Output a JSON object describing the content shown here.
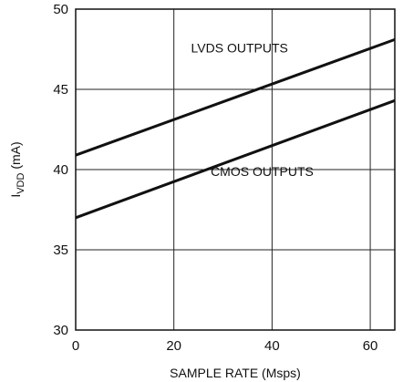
{
  "chart_data": {
    "type": "line",
    "title": "",
    "xlabel": "SAMPLE RATE (Msps)",
    "ylabel": {
      "base": "I",
      "subscript": "VDD",
      "unit": " (mA)"
    },
    "xlim": [
      0,
      65
    ],
    "ylim": [
      30,
      50
    ],
    "xticks": [
      0,
      20,
      40,
      60
    ],
    "yticks": [
      30,
      35,
      40,
      45,
      50
    ],
    "grid": true,
    "series": [
      {
        "name": "LVDS OUTPUTS",
        "x": [
          0,
          65
        ],
        "y": [
          40.9,
          48.1
        ]
      },
      {
        "name": "CMOS OUTPUTS",
        "x": [
          0,
          65
        ],
        "y": [
          37.0,
          44.3
        ]
      }
    ],
    "annotations": [
      {
        "text": "LVDS OUTPUTS",
        "x": 23.5,
        "y": 47.3
      },
      {
        "text": "CMOS OUTPUTS",
        "x": 27.5,
        "y": 39.6
      }
    ]
  }
}
